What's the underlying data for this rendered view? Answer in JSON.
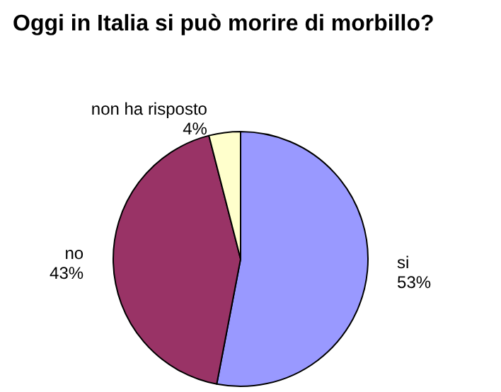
{
  "chart_data": {
    "type": "pie",
    "title": "Oggi in Italia si può morire di morbillo?",
    "categories": [
      "si",
      "no",
      "non ha risposto"
    ],
    "values": [
      53,
      43,
      4
    ],
    "colors": [
      "#9999ff",
      "#993366",
      "#ffffcc"
    ],
    "value_labels": [
      "53%",
      "43%",
      "4%"
    ],
    "legend": false
  }
}
